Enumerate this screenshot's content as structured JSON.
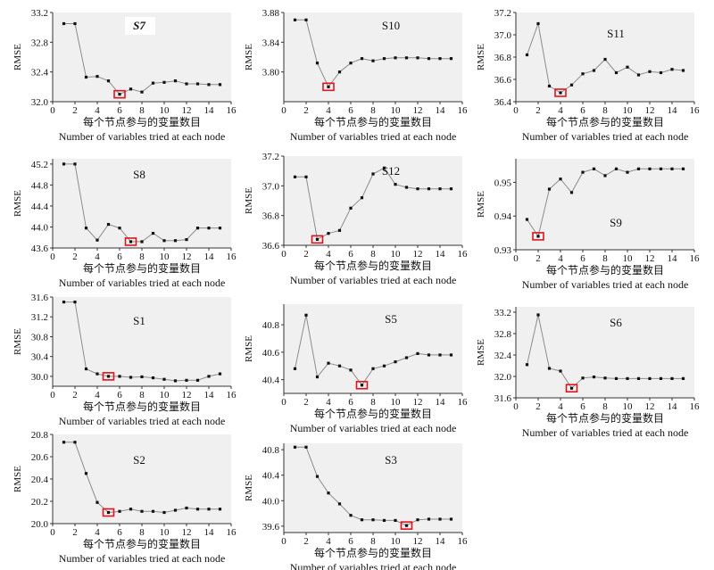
{
  "style": {
    "plot_background": "#f0f0f0",
    "line_color": "#8c8c8c",
    "marker_color": "#111111",
    "highlight_color": "#e0141e",
    "axis_color": "#333333"
  },
  "chart_data": [
    {
      "title": "S7",
      "type": "line",
      "x": [
        1,
        2,
        3,
        4,
        5,
        6,
        7,
        8,
        9,
        10,
        11,
        12,
        13,
        14,
        15
      ],
      "y": [
        33.05,
        33.05,
        32.33,
        32.34,
        32.28,
        32.1,
        32.17,
        32.13,
        32.25,
        32.26,
        32.28,
        32.24,
        32.24,
        32.23,
        32.23
      ],
      "ylim": [
        32.0,
        33.2
      ],
      "yticks": [
        "32.0",
        "32.4",
        "32.8",
        "33.2"
      ],
      "xticks": [
        "0",
        "2",
        "4",
        "6",
        "8",
        "10",
        "12",
        "14",
        "16"
      ],
      "ylabel": "RMSE",
      "xlabel_cn": "每个节点参与的变量数目",
      "xlabel_en": "Number of variables tried at each node",
      "highlight_x": 6
    },
    {
      "title": "S10",
      "type": "line",
      "x": [
        1,
        2,
        3,
        4,
        5,
        6,
        7,
        8,
        9,
        10,
        11,
        12,
        13,
        14,
        15
      ],
      "y": [
        3.87,
        3.87,
        3.812,
        3.78,
        3.8,
        3.812,
        3.818,
        3.815,
        3.818,
        3.819,
        3.819,
        3.819,
        3.818,
        3.818,
        3.818
      ],
      "ylim": [
        3.76,
        3.88
      ],
      "yticks": [
        "3.80",
        "3.84",
        "3.88"
      ],
      "xticks": [
        "0",
        "2",
        "4",
        "6",
        "8",
        "10",
        "12",
        "14",
        "16"
      ],
      "ylabel": "RMSE",
      "xlabel_cn": "每个节点参与的变量数目",
      "xlabel_en": "Number of variables tried at each node",
      "highlight_x": 4
    },
    {
      "title": "S11",
      "type": "line",
      "x": [
        1,
        2,
        3,
        4,
        5,
        6,
        7,
        8,
        9,
        10,
        11,
        12,
        13,
        14,
        15
      ],
      "y": [
        36.82,
        37.1,
        36.54,
        36.48,
        36.55,
        36.65,
        36.68,
        36.78,
        36.66,
        36.71,
        36.64,
        36.67,
        36.66,
        36.69,
        36.68
      ],
      "ylim": [
        36.4,
        37.2
      ],
      "yticks": [
        "36.4",
        "36.6",
        "36.8",
        "37.0",
        "37.2"
      ],
      "xticks": [
        "0",
        "2",
        "4",
        "6",
        "8",
        "10",
        "12",
        "14",
        "16"
      ],
      "ylabel": "RMSE",
      "xlabel_cn": "每个节点参与的变量数目",
      "xlabel_en": "Number of variables tried at each node",
      "highlight_x": 4
    },
    {
      "title": "S8",
      "type": "line",
      "x": [
        1,
        2,
        3,
        4,
        5,
        6,
        7,
        8,
        9,
        10,
        11,
        12,
        13,
        14,
        15
      ],
      "y": [
        45.2,
        45.2,
        43.98,
        43.75,
        44.05,
        43.98,
        43.72,
        43.72,
        43.88,
        43.74,
        43.74,
        43.76,
        43.98,
        43.98,
        43.98
      ],
      "ylim": [
        43.6,
        45.3
      ],
      "yticks": [
        "43.6",
        "44.0",
        "44.4",
        "44.8",
        "45.2"
      ],
      "xticks": [
        "0",
        "2",
        "4",
        "6",
        "8",
        "10",
        "12",
        "14",
        "16"
      ],
      "ylabel": "RMSE",
      "xlabel_cn": "每个节点参与的变量数目",
      "xlabel_en": "Number of variables tried at each node",
      "highlight_x": 7
    },
    {
      "title": "S12",
      "type": "line",
      "x": [
        1,
        2,
        3,
        4,
        5,
        6,
        7,
        8,
        9,
        10,
        11,
        12,
        13,
        14,
        15
      ],
      "y": [
        37.06,
        37.06,
        36.64,
        36.68,
        36.7,
        36.85,
        36.92,
        37.08,
        37.12,
        37.01,
        36.99,
        36.98,
        36.98,
        36.98,
        36.98
      ],
      "ylim": [
        36.6,
        37.2
      ],
      "yticks": [
        "36.6",
        "36.8",
        "37.0",
        "37.2"
      ],
      "xticks": [
        "0",
        "2",
        "4",
        "6",
        "8",
        "10",
        "12",
        "14",
        "16"
      ],
      "ylabel": "RMSE",
      "xlabel_cn": "每个节点参与的变量数目",
      "xlabel_en": "Number of variables tried at each node",
      "highlight_x": 3
    },
    {
      "title": "S9",
      "type": "line",
      "x": [
        1,
        2,
        3,
        4,
        5,
        6,
        7,
        8,
        9,
        10,
        11,
        12,
        13,
        14,
        15
      ],
      "y": [
        0.939,
        0.934,
        0.948,
        0.951,
        0.947,
        0.953,
        0.954,
        0.952,
        0.954,
        0.953,
        0.954,
        0.954,
        0.954,
        0.954,
        0.954
      ],
      "ylim": [
        0.93,
        0.957
      ],
      "yticks": [
        "0.93",
        "0.94",
        "0.95"
      ],
      "xticks": [
        "0",
        "2",
        "4",
        "6",
        "8",
        "10",
        "12",
        "14",
        "16"
      ],
      "ylabel": "RMSE",
      "xlabel_cn": "每个节点参与的变量数目",
      "xlabel_en": "Number of variables tried at each node",
      "highlight_x": 2
    },
    {
      "title": "S1",
      "type": "line",
      "x": [
        1,
        2,
        3,
        4,
        5,
        6,
        7,
        8,
        9,
        10,
        11,
        12,
        13,
        14,
        15
      ],
      "y": [
        31.5,
        31.5,
        30.15,
        30.05,
        30.0,
        30.0,
        29.98,
        29.99,
        29.97,
        29.94,
        29.91,
        29.92,
        29.92,
        30.0,
        30.05
      ],
      "ylim": [
        29.8,
        31.6
      ],
      "yticks": [
        "30.0",
        "30.4",
        "30.8",
        "31.2",
        "31.6"
      ],
      "xticks": [
        "0",
        "2",
        "4",
        "6",
        "8",
        "10",
        "12",
        "14",
        "16"
      ],
      "ylabel": "RMSE",
      "xlabel_cn": "每个节点参与的变量数目",
      "xlabel_en": "Number of variables tried at each node",
      "highlight_x": 5
    },
    {
      "title": "S5",
      "type": "line",
      "x": [
        1,
        2,
        3,
        4,
        5,
        6,
        7,
        8,
        9,
        10,
        11,
        12,
        13,
        14,
        15
      ],
      "y": [
        40.48,
        40.87,
        40.42,
        40.52,
        40.5,
        40.47,
        40.36,
        40.48,
        40.5,
        40.53,
        40.56,
        40.59,
        40.58,
        40.58,
        40.58
      ],
      "ylim": [
        40.3,
        40.95
      ],
      "yticks": [
        "40.4",
        "40.6",
        "40.8"
      ],
      "xticks": [
        "0",
        "2",
        "4",
        "6",
        "8",
        "10",
        "12",
        "14",
        "16"
      ],
      "ylabel": "RMSE",
      "xlabel_cn": "每个节点参与的变量数目",
      "xlabel_en": "Number of variables tried at each node",
      "highlight_x": 7
    },
    {
      "title": "S6",
      "type": "line",
      "x": [
        1,
        2,
        3,
        4,
        5,
        6,
        7,
        8,
        9,
        10,
        11,
        12,
        13,
        14,
        15
      ],
      "y": [
        32.22,
        33.15,
        32.15,
        32.1,
        31.78,
        31.97,
        31.99,
        31.97,
        31.96,
        31.96,
        31.96,
        31.96,
        31.96,
        31.96,
        31.96
      ],
      "ylim": [
        31.6,
        33.3
      ],
      "yticks": [
        "31.6",
        "32.0",
        "32.4",
        "32.8",
        "33.2"
      ],
      "xticks": [
        "0",
        "2",
        "4",
        "6",
        "8",
        "10",
        "12",
        "14",
        "16"
      ],
      "ylabel": "RMSE",
      "xlabel_cn": "每个节点参与的变量数目",
      "xlabel_en": "Number of variables tried at each node",
      "highlight_x": 5
    },
    {
      "title": "S2",
      "type": "line",
      "x": [
        1,
        2,
        3,
        4,
        5,
        6,
        7,
        8,
        9,
        10,
        11,
        12,
        13,
        14,
        15
      ],
      "y": [
        20.73,
        20.73,
        20.45,
        20.19,
        20.1,
        20.11,
        20.13,
        20.11,
        20.11,
        20.1,
        20.12,
        20.14,
        20.13,
        20.13,
        20.13
      ],
      "ylim": [
        20.0,
        20.8
      ],
      "yticks": [
        "20.0",
        "20.2",
        "20.4",
        "20.6",
        "20.8"
      ],
      "xticks": [
        "0",
        "2",
        "4",
        "6",
        "8",
        "10",
        "12",
        "14",
        "16"
      ],
      "ylabel": "RMSE",
      "xlabel_cn": "每个节点参与的变量数目",
      "xlabel_en": "Number of variables tried at each node",
      "highlight_x": 5
    },
    {
      "title": "S3",
      "type": "line",
      "x": [
        1,
        2,
        3,
        4,
        5,
        6,
        7,
        8,
        9,
        10,
        11,
        12,
        13,
        14,
        15
      ],
      "y": [
        40.84,
        40.84,
        40.38,
        40.12,
        39.95,
        39.77,
        39.7,
        39.7,
        39.69,
        39.69,
        39.61,
        39.7,
        39.71,
        39.71,
        39.71
      ],
      "ylim": [
        39.5,
        40.9
      ],
      "yticks": [
        "39.6",
        "40.0",
        "40.4",
        "40.8"
      ],
      "xticks": [
        "0",
        "2",
        "4",
        "6",
        "8",
        "10",
        "12",
        "14",
        "16"
      ],
      "ylabel": "RMSE",
      "xlabel_cn": "每个节点参与的变量数目",
      "xlabel_en": "Number of variables tried at each node",
      "highlight_x": 11
    }
  ]
}
